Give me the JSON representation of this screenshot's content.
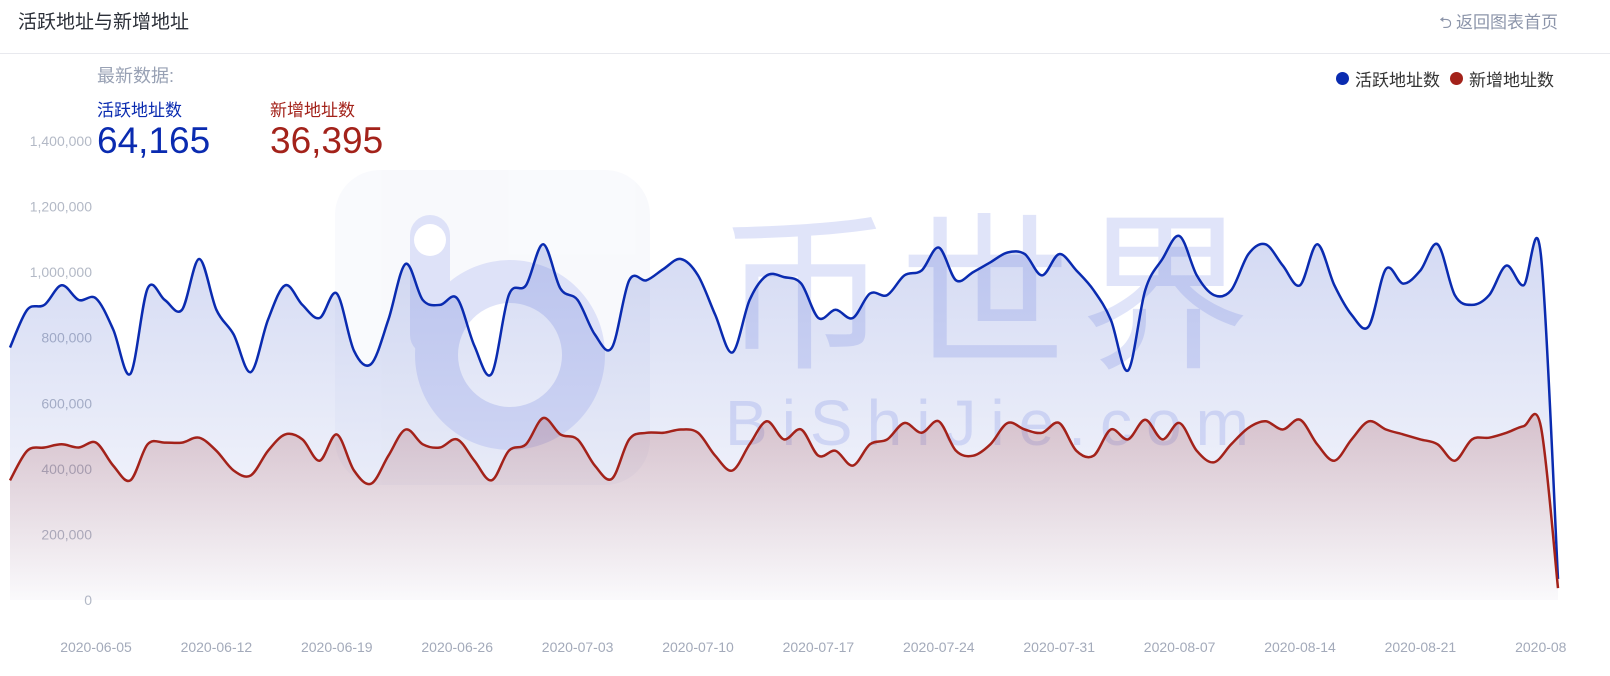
{
  "header": {
    "title": "活跃地址与新增地址",
    "back_label": "返回图表首页",
    "back_icon": "return-arrow-icon"
  },
  "latest": {
    "heading": "最新数据:",
    "active_label": "活跃地址数",
    "active_value": "64,165",
    "new_label": "新增地址数",
    "new_value": "36,395"
  },
  "watermark": {
    "cn": "币世界",
    "en": "BiShiJie.com"
  },
  "colors": {
    "active": "#0a2bb0",
    "new": "#a3221a"
  },
  "chart_data": {
    "type": "area",
    "title": "活跃地址与新增地址",
    "legend": [
      "活跃地址数",
      "新增地址数"
    ],
    "legend_position": "top-right",
    "ylim": [
      0,
      1400000
    ],
    "y_ticks": [
      "0",
      "200,000",
      "400,000",
      "600,000",
      "800,000",
      "1,000,000",
      "1,200,000",
      "1,400,000"
    ],
    "x_ticks": [
      "2020-06-05",
      "2020-06-12",
      "2020-06-19",
      "2020-06-26",
      "2020-07-03",
      "2020-07-10",
      "2020-07-17",
      "2020-07-24",
      "2020-07-31",
      "2020-08-07",
      "2020-08-14",
      "2020-08-21",
      "2020-08"
    ],
    "x": [
      "2020-05-31",
      "2020-06-01",
      "2020-06-02",
      "2020-06-03",
      "2020-06-04",
      "2020-06-05",
      "2020-06-06",
      "2020-06-07",
      "2020-06-08",
      "2020-06-09",
      "2020-06-10",
      "2020-06-11",
      "2020-06-12",
      "2020-06-13",
      "2020-06-14",
      "2020-06-15",
      "2020-06-16",
      "2020-06-17",
      "2020-06-18",
      "2020-06-19",
      "2020-06-20",
      "2020-06-21",
      "2020-06-22",
      "2020-06-23",
      "2020-06-24",
      "2020-06-25",
      "2020-06-26",
      "2020-06-27",
      "2020-06-28",
      "2020-06-29",
      "2020-06-30",
      "2020-07-01",
      "2020-07-02",
      "2020-07-03",
      "2020-07-04",
      "2020-07-05",
      "2020-07-06",
      "2020-07-07",
      "2020-07-08",
      "2020-07-09",
      "2020-07-10",
      "2020-07-11",
      "2020-07-12",
      "2020-07-13",
      "2020-07-14",
      "2020-07-15",
      "2020-07-16",
      "2020-07-17",
      "2020-07-18",
      "2020-07-19",
      "2020-07-20",
      "2020-07-21",
      "2020-07-22",
      "2020-07-23",
      "2020-07-24",
      "2020-07-25",
      "2020-07-26",
      "2020-07-27",
      "2020-07-28",
      "2020-07-29",
      "2020-07-30",
      "2020-07-31",
      "2020-08-01",
      "2020-08-02",
      "2020-08-03",
      "2020-08-04",
      "2020-08-05",
      "2020-08-06",
      "2020-08-07",
      "2020-08-08",
      "2020-08-09",
      "2020-08-10",
      "2020-08-11",
      "2020-08-12",
      "2020-08-13",
      "2020-08-14",
      "2020-08-15",
      "2020-08-16",
      "2020-08-17",
      "2020-08-18",
      "2020-08-19",
      "2020-08-20",
      "2020-08-21",
      "2020-08-22",
      "2020-08-23",
      "2020-08-24",
      "2020-08-25",
      "2020-08-26",
      "2020-08-27",
      "2020-08-28",
      "2020-08-29"
    ],
    "series": [
      {
        "name": "活跃地址数",
        "values": [
          770000,
          885000,
          900000,
          960000,
          915000,
          920000,
          825000,
          690000,
          950000,
          915000,
          885000,
          1040000,
          885000,
          810000,
          695000,
          855000,
          960000,
          900000,
          860000,
          935000,
          760000,
          720000,
          855000,
          1025000,
          915000,
          900000,
          920000,
          775000,
          690000,
          930000,
          960000,
          1085000,
          950000,
          915000,
          810000,
          770000,
          975000,
          975000,
          1010000,
          1040000,
          990000,
          870000,
          755000,
          915000,
          990000,
          985000,
          965000,
          860000,
          885000,
          860000,
          935000,
          930000,
          990000,
          1005000,
          1075000,
          975000,
          1000000,
          1030000,
          1060000,
          1055000,
          990000,
          1055000,
          1005000,
          945000,
          855000,
          700000,
          945000,
          1040000,
          1110000,
          990000,
          930000,
          945000,
          1055000,
          1085000,
          1020000,
          960000,
          1085000,
          960000,
          870000,
          835000,
          1010000,
          965000,
          1005000,
          1085000,
          930000,
          900000,
          930000,
          1020000,
          960000,
          1055000,
          64165
        ]
      },
      {
        "name": "新增地址数",
        "values": [
          365000,
          455000,
          465000,
          475000,
          465000,
          480000,
          410000,
          365000,
          475000,
          480000,
          480000,
          495000,
          455000,
          395000,
          380000,
          455000,
          505000,
          490000,
          425000,
          505000,
          395000,
          355000,
          440000,
          520000,
          475000,
          465000,
          490000,
          425000,
          365000,
          455000,
          475000,
          555000,
          505000,
          490000,
          410000,
          370000,
          490000,
          510000,
          510000,
          520000,
          510000,
          440000,
          395000,
          475000,
          545000,
          490000,
          520000,
          440000,
          455000,
          410000,
          475000,
          490000,
          540000,
          510000,
          545000,
          455000,
          440000,
          475000,
          540000,
          520000,
          510000,
          540000,
          455000,
          440000,
          520000,
          490000,
          550000,
          490000,
          540000,
          455000,
          420000,
          475000,
          525000,
          545000,
          520000,
          550000,
          475000,
          425000,
          490000,
          545000,
          520000,
          505000,
          490000,
          475000,
          425000,
          490000,
          495000,
          510000,
          530000,
          530000,
          36395
        ]
      }
    ]
  }
}
